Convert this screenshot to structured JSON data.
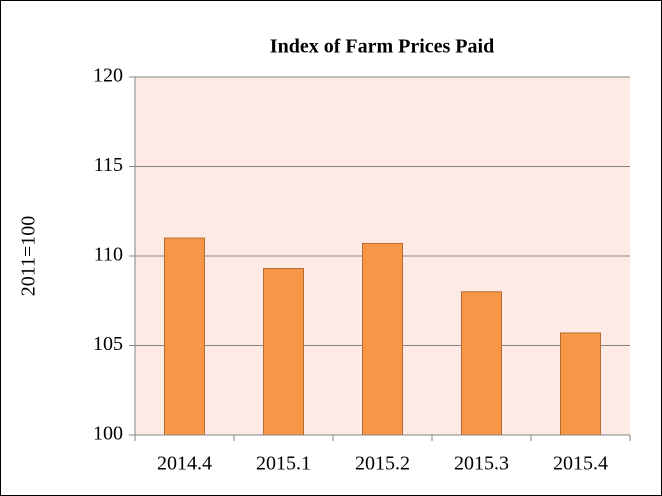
{
  "chart_data": {
    "type": "bar",
    "title": "Index of Farm Prices Paid",
    "y_label": "2011=100",
    "categories": [
      "2014.4",
      "2015.1",
      "2015.2",
      "2015.3",
      "2015.4"
    ],
    "values": [
      111.0,
      109.3,
      110.7,
      108.0,
      105.7
    ],
    "color": "#f79646",
    "ylim": [
      100,
      120
    ],
    "yticks": [
      100,
      105,
      110,
      115,
      120
    ],
    "grid": true
  }
}
